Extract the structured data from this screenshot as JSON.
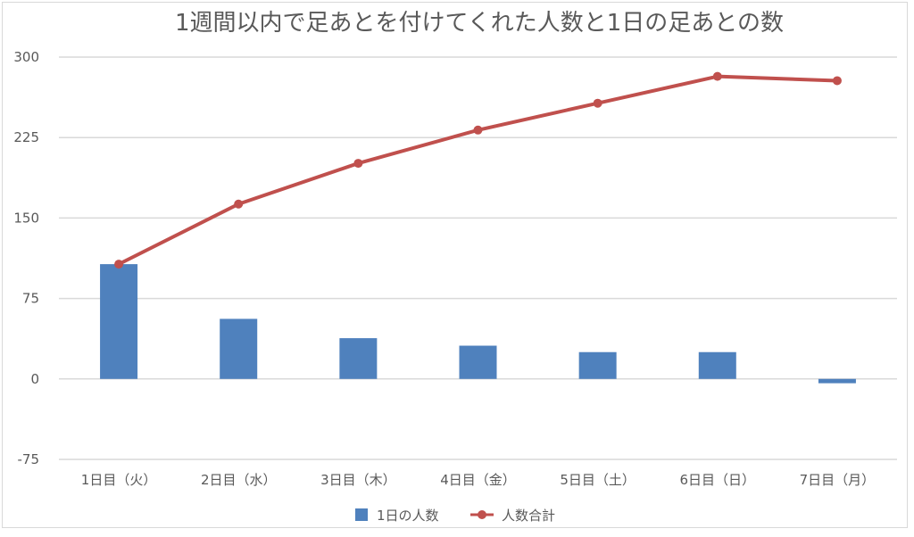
{
  "chart_data": {
    "type": "bar",
    "title": "1週間以内で足あとを付けてくれた人数と1日の足あとの数",
    "categories": [
      "1日目（火）",
      "2日目（水）",
      "3日目（木）",
      "4日目（金）",
      "5日目（土）",
      "6日目（日）",
      "7日目（月）"
    ],
    "series": [
      {
        "name": "1日の人数",
        "type": "bar",
        "color": "#4f81bd",
        "values": [
          107,
          56,
          38,
          31,
          25,
          25,
          -4
        ]
      },
      {
        "name": "人数合計",
        "type": "line",
        "color": "#c0504d",
        "values": [
          107,
          163,
          201,
          232,
          257,
          282,
          278
        ]
      }
    ],
    "ylim": [
      -75,
      300
    ],
    "yticks": [
      300,
      225,
      150,
      75,
      0,
      -75
    ],
    "grid": true,
    "legend": "bottom"
  }
}
